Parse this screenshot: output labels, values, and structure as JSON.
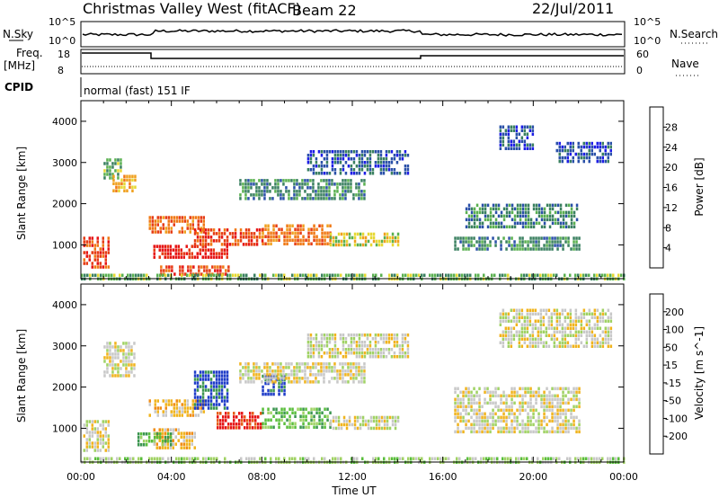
{
  "header": {
    "radar_title": "Christmas Valley West (fitACF)",
    "beam": "Beam 22",
    "date": "22/Jul/2011"
  },
  "status_panel": {
    "nsky_label": "N.Sky",
    "nsky_ticks": [
      "10^5",
      "10^0"
    ],
    "nsearch_label": "N.Search",
    "freq_label": "Freq.",
    "freq_unit": "[MHz]",
    "freq_ticks": [
      "18",
      "8"
    ],
    "nave_label": "Nave",
    "nave_ticks": [
      "60",
      "0"
    ],
    "cpid_label": "CPID",
    "cpid_value": "normal (fast) 151 IF"
  },
  "chart_data": [
    {
      "type": "heatmap",
      "name": "power",
      "ylabel": "Slant Range [km]",
      "yticks": [
        1000,
        2000,
        3000,
        4000
      ],
      "ylim": [
        180,
        4500
      ],
      "xlim": [
        0,
        24
      ],
      "colorbar_label": "Power [dB]",
      "colorbar_ticks": [
        "28",
        "24",
        "20",
        "16",
        "12",
        "8",
        "4"
      ],
      "colorbar_colors": [
        "#1e1ee6",
        "#2a50a8",
        "#3a8060",
        "#5ab050",
        "#e6d832",
        "#f0a01e",
        "#f07814",
        "#e63c14",
        "#e61414"
      ],
      "regions": [
        {
          "t0": 0.1,
          "t1": 1.2,
          "r0": 500,
          "r1": 1200,
          "level": 7
        },
        {
          "t0": 1.0,
          "t1": 1.8,
          "r0": 2600,
          "r1": 3100,
          "level": 3
        },
        {
          "t0": 1.4,
          "t1": 2.4,
          "r0": 2300,
          "r1": 2700,
          "level": 5
        },
        {
          "t0": 3.0,
          "t1": 5.5,
          "r0": 1300,
          "r1": 1700,
          "level": 6
        },
        {
          "t0": 3.2,
          "t1": 6.5,
          "r0": 700,
          "r1": 1000,
          "level": 8
        },
        {
          "t0": 3.5,
          "t1": 6.5,
          "r0": 250,
          "r1": 500,
          "level": 7
        },
        {
          "t0": 5.0,
          "t1": 8.0,
          "r0": 1000,
          "r1": 1400,
          "level": 7
        },
        {
          "t0": 8.0,
          "t1": 11.0,
          "r0": 1000,
          "r1": 1500,
          "level": 6
        },
        {
          "t0": 11.0,
          "t1": 14.0,
          "r0": 1000,
          "r1": 1300,
          "level": 4
        },
        {
          "t0": 7.0,
          "t1": 12.5,
          "r0": 2100,
          "r1": 2600,
          "level": 2
        },
        {
          "t0": 10.0,
          "t1": 14.5,
          "r0": 2700,
          "r1": 3300,
          "level": 1
        },
        {
          "t0": 16.5,
          "t1": 22.0,
          "r0": 900,
          "r1": 1200,
          "level": 2
        },
        {
          "t0": 17.0,
          "t1": 22.0,
          "r0": 1400,
          "r1": 2000,
          "level": 2
        },
        {
          "t0": 18.5,
          "t1": 20.0,
          "r0": 3300,
          "r1": 3900,
          "level": 1
        },
        {
          "t0": 21.0,
          "t1": 23.5,
          "r0": 3000,
          "r1": 3500,
          "level": 1
        },
        {
          "t0": 0.0,
          "t1": 24.0,
          "r0": 180,
          "r1": 300,
          "level": 3
        }
      ]
    },
    {
      "type": "heatmap",
      "name": "velocity",
      "ylabel": "Slant Range [km]",
      "yticks": [
        1000,
        2000,
        3000,
        4000
      ],
      "ylim": [
        180,
        4500
      ],
      "xlim": [
        0,
        24
      ],
      "xticks": [
        "00:00",
        "04:00",
        "08:00",
        "12:00",
        "16:00",
        "20:00",
        "00:00"
      ],
      "xlabel": "Time UT",
      "colorbar_label": "Velocity [m s^-1]",
      "colorbar_ticks": [
        "200",
        "100",
        "50",
        "15",
        "-15",
        "-50",
        "-100",
        "-200"
      ],
      "colorbar_colors": [
        "#1e3cc8",
        "#3c9650",
        "#5abe3c",
        "#a0d264",
        "#c8c8c8",
        "#f0b41e",
        "#f08c14",
        "#e65a14",
        "#e61414"
      ],
      "regions": [
        {
          "t0": 0.1,
          "t1": 1.2,
          "r0": 500,
          "r1": 1200,
          "level": 4
        },
        {
          "t0": 1.0,
          "t1": 2.4,
          "r0": 2300,
          "r1": 3100,
          "level": 4
        },
        {
          "t0": 3.0,
          "t1": 5.5,
          "r0": 1300,
          "r1": 1700,
          "level": 5
        },
        {
          "t0": 3.2,
          "t1": 5.0,
          "r0": 500,
          "r1": 1000,
          "level": 5
        },
        {
          "t0": 2.5,
          "t1": 4.0,
          "r0": 600,
          "r1": 900,
          "level": 2
        },
        {
          "t0": 5.0,
          "t1": 6.5,
          "r0": 1500,
          "r1": 2400,
          "level": 0
        },
        {
          "t0": 6.0,
          "t1": 8.0,
          "r0": 1000,
          "r1": 1400,
          "level": 8
        },
        {
          "t0": 8.0,
          "t1": 11.0,
          "r0": 1000,
          "r1": 1500,
          "level": 2
        },
        {
          "t0": 8.0,
          "t1": 9.0,
          "r0": 1800,
          "r1": 2300,
          "level": 0
        },
        {
          "t0": 7.0,
          "t1": 12.5,
          "r0": 2100,
          "r1": 2600,
          "level": 4
        },
        {
          "t0": 10.0,
          "t1": 14.5,
          "r0": 2700,
          "r1": 3300,
          "level": 4
        },
        {
          "t0": 11.0,
          "t1": 14.0,
          "r0": 1000,
          "r1": 1300,
          "level": 4
        },
        {
          "t0": 16.5,
          "t1": 22.0,
          "r0": 900,
          "r1": 2000,
          "level": 4
        },
        {
          "t0": 18.5,
          "t1": 23.5,
          "r0": 3000,
          "r1": 3900,
          "level": 4
        },
        {
          "t0": 0.0,
          "t1": 24.0,
          "r0": 180,
          "r1": 300,
          "level": 3
        }
      ]
    }
  ]
}
